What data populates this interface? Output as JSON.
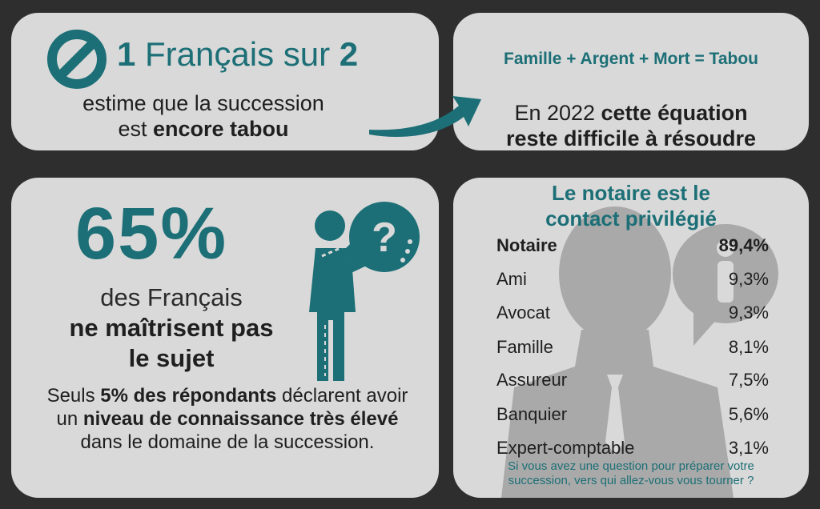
{
  "card1": {
    "headline_num1": "1",
    "headline_mid": " Français sur ",
    "headline_num2": "2",
    "line1": "estime que la succession",
    "line2_regular": "est ",
    "line2_bold": "encore tabou",
    "icon": "no-entry-icon"
  },
  "card2": {
    "equation": "Famille + Argent + Mort = Tabou",
    "line1_regular": "En 2022 ",
    "line1_bold": "cette équation",
    "line2": "reste difficile à résoudre"
  },
  "card3": {
    "percent": "65%",
    "sub1": "des Français",
    "sub2": "ne maîtrisent pas",
    "sub3": "le sujet",
    "detail": {
      "a": "Seuls ",
      "b": "5% des répondants",
      "c": " déclarent avoir un ",
      "d": "niveau de connaissance très élevé",
      "e": " dans le domaine de la succession."
    },
    "icon": "person-question-icon"
  },
  "card4": {
    "title_line1": "Le notaire est le",
    "title_line2": "contact privilégié",
    "rows": [
      {
        "label": "Notaire",
        "value": "89,4%"
      },
      {
        "label": "Ami",
        "value": "9,3%"
      },
      {
        "label": "Avocat",
        "value": "9,3%"
      },
      {
        "label": "Famille",
        "value": "8,1%"
      },
      {
        "label": "Assureur",
        "value": "7,5%"
      },
      {
        "label": "Banquier",
        "value": "5,6%"
      },
      {
        "label": "Expert-comptable",
        "value": "3,1%"
      }
    ],
    "question_line1": "Si vous avez une question pour préparer votre",
    "question_line2": "succession, vers qui allez-vous vous tourner ?",
    "icon": "businessman-info-silhouette-icon"
  },
  "colors": {
    "accent": "#1c6f76",
    "background": "#2e2e2e",
    "card": "#d9d9d9",
    "silhouette": "#a9a9a9"
  }
}
